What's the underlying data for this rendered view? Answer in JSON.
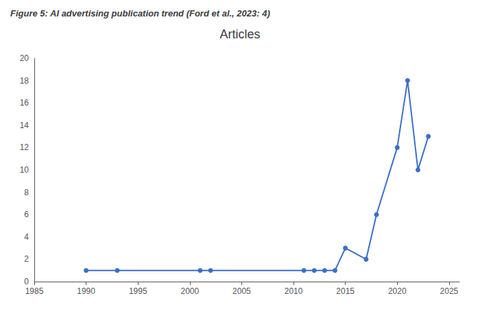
{
  "chart_data": {
    "type": "line",
    "title": "Articles",
    "subtitle": "Figure 5: AI advertising publication trend (Ford et al., 2023: 4)",
    "x": [
      1990,
      1993,
      2001,
      2002,
      2011,
      2012,
      2013,
      2014,
      2015,
      2017,
      2018,
      2020,
      2021,
      2022,
      2023
    ],
    "values": [
      1,
      1,
      1,
      1,
      1,
      1,
      1,
      1,
      3,
      2,
      6,
      12,
      18,
      10,
      13
    ],
    "color": "#3B6FC9",
    "marker": "circle",
    "xlim": [
      1985,
      2026
    ],
    "xticks": [
      1985,
      1990,
      1995,
      2000,
      2005,
      2010,
      2015,
      2020,
      2025
    ],
    "ylim": [
      0,
      20
    ],
    "yticks": [
      0,
      2,
      4,
      6,
      8,
      10,
      12,
      14,
      16,
      18,
      20
    ],
    "grid": false
  }
}
